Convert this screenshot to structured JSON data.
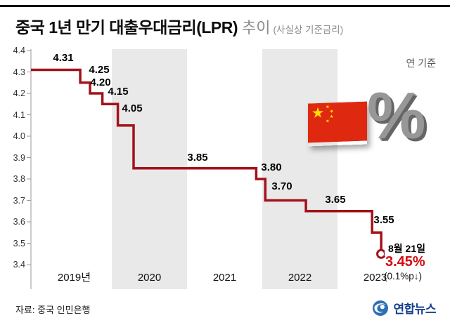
{
  "header": {
    "title_main": "중국 1년 만기 대출우대금리(LPR)",
    "title_sub": "추이",
    "title_note": "(사실상 기준금리)"
  },
  "chart": {
    "unit_label": "연 기준",
    "final": {
      "date_label": "8월 21일",
      "value_label": "3.45%",
      "change_label": "(0.1%p↓)"
    }
  },
  "chart_data": {
    "type": "line",
    "subtype": "step",
    "title": "중국 1년 만기 대출우대금리(LPR) 추이 (사실상 기준금리)",
    "ylabel": "연 기준 %",
    "ylim": [
      3.4,
      4.4
    ],
    "y_ticks": [
      "4.4",
      "4.3",
      "4.2",
      "4.1",
      "4.0",
      "3.9",
      "3.8",
      "3.7",
      "3.6",
      "3.5",
      "3.4"
    ],
    "x_labels": [
      "2019년",
      "2020",
      "2021",
      "2022",
      "2023"
    ],
    "band_years": [
      "2020",
      "2022"
    ],
    "grid": false,
    "legend": false,
    "series": [
      {
        "name": "LPR",
        "points": [
          {
            "t": 2019.0,
            "value": 4.31,
            "label": "4.31"
          },
          {
            "t": 2019.58,
            "value": 4.25,
            "label": "4.25"
          },
          {
            "t": 2019.71,
            "value": 4.2,
            "label": "4.20"
          },
          {
            "t": 2019.875,
            "value": 4.15,
            "label": "4.15"
          },
          {
            "t": 2020.08,
            "value": 4.05,
            "label": "4.05"
          },
          {
            "t": 2020.29,
            "value": 3.85,
            "label": "3.85"
          },
          {
            "t": 2021.92,
            "value": 3.8,
            "label": "3.80"
          },
          {
            "t": 2022.04,
            "value": 3.7,
            "label": "3.70"
          },
          {
            "t": 2022.58,
            "value": 3.65,
            "label": "3.65"
          },
          {
            "t": 2023.46,
            "value": 3.55,
            "label": "3.55"
          },
          {
            "t": 2023.58,
            "value": 3.45,
            "label": "3.45"
          }
        ]
      }
    ],
    "final_point": {
      "date": "8월 21일",
      "value_label": "3.45%",
      "change_label": "(0.1%p↓)"
    }
  },
  "decor": {
    "percent_symbol": "%"
  },
  "colors": {
    "line": "#a3121a",
    "accent_red": "#d50a12",
    "band": "#e9e9e9",
    "axis": "#9a9a9a",
    "flag_red": "#de2910",
    "flag_yellow": "#ffde00",
    "logo_blue": "#2e6fb7"
  },
  "footer": {
    "source": "자료: 중국 인민은행",
    "logo_text": "연합뉴스"
  }
}
